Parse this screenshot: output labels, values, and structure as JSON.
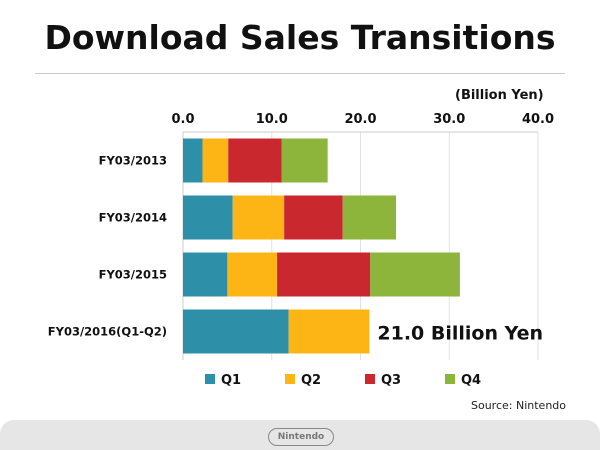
{
  "chart_data": {
    "type": "bar",
    "orientation": "horizontal",
    "stacked": true,
    "title": "Download Sales Transitions",
    "unit_label": "(Billion Yen)",
    "categories": [
      "FY03/2013",
      "FY03/2014",
      "FY03/2015",
      "FY03/2016(Q1-Q2)"
    ],
    "xlim": [
      0,
      40
    ],
    "xticks": [
      "0.0",
      "10.0",
      "20.0",
      "30.0",
      "40.0"
    ],
    "grid": true,
    "legend_position": "bottom",
    "series": [
      {
        "name": "Q1",
        "color": "#2E8FA8",
        "values": [
          2.2,
          5.6,
          5.0,
          11.9
        ]
      },
      {
        "name": "Q2",
        "color": "#FDB515",
        "values": [
          2.9,
          5.8,
          5.6,
          9.1
        ]
      },
      {
        "name": "Q3",
        "color": "#C8282E",
        "values": [
          6.0,
          6.6,
          10.5,
          null
        ]
      },
      {
        "name": "Q4",
        "color": "#8DB53C",
        "values": [
          5.2,
          6.0,
          10.1,
          null
        ]
      }
    ],
    "annotation": "21.0 Billion Yen",
    "source": "Source: Nintendo"
  },
  "footer": {
    "logo": "Nintendo"
  }
}
